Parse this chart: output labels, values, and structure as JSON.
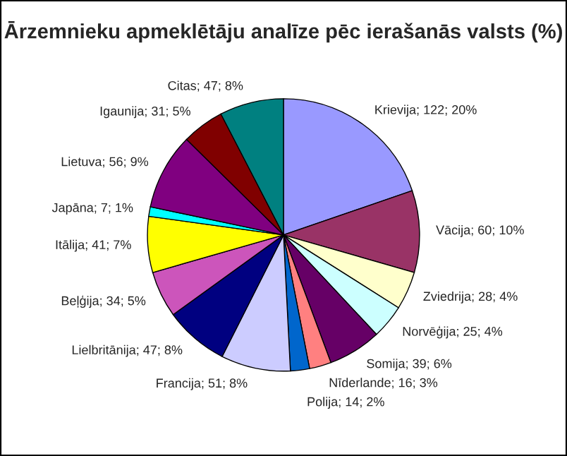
{
  "chart_data": {
    "type": "pie",
    "title": "Ārzemnieku apmeklētāju analīze pēc ierašanās valsts (%)",
    "categories": [
      "Krievija",
      "Vācija",
      "Zviedrija",
      "Norvēģija",
      "Somija",
      "Nīderlande",
      "Polija",
      "Francija",
      "Lielbritānija",
      "Beļģija",
      "Itālija",
      "Japāna",
      "Lietuva",
      "Igaunija",
      "Citas"
    ],
    "values": [
      122,
      60,
      28,
      25,
      39,
      16,
      14,
      51,
      47,
      34,
      41,
      7,
      56,
      31,
      47
    ],
    "value_labels": [
      "122; 20%",
      "60; 10%",
      "28; 4%",
      "25; 4%",
      "39; 6%",
      "16; 3%",
      "14; 2%",
      "51; 8%",
      "47; 8%",
      "34; 5%",
      "41; 7%",
      "7; 1%",
      "56; 9%",
      "31; 5%",
      "47; 8%"
    ],
    "colors": [
      "#9999ff",
      "#993366",
      "#ffffcc",
      "#ccffff",
      "#660066",
      "#ff8080",
      "#0066cc",
      "#ccccff",
      "#000080",
      "#cc55bb",
      "#ffff00",
      "#00ffff",
      "#800080",
      "#800000",
      "#008080"
    ],
    "legend": false
  }
}
